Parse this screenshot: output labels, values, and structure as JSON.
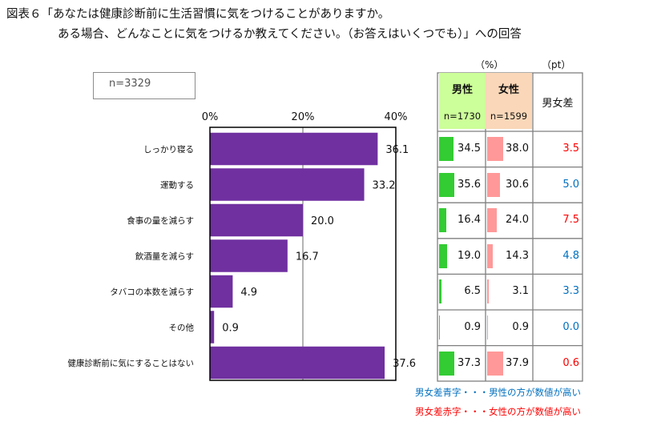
{
  "title": {
    "line1": "図表６「あなたは健康診断前に生活習慣に気をつけることがありますか。",
    "line2": "ある場合、どんなことに気をつけるか教えてください。（お答えはいくつでも）」への回答"
  },
  "sample_size": "n=3329",
  "chart_data": {
    "type": "bar",
    "orientation": "horizontal",
    "title": "図表６「あなたは健康診断前に生活習慣に気をつけることがありますか。ある場合、どんなことに気をつけるか教えてください。（お答えはいくつでも）」への回答",
    "categories": [
      "しっかり寝る",
      "運動する",
      "食事の量を減らす",
      "飲酒量を減らす",
      "タバコの本数を減らす",
      "その他",
      "健康診断前に気にすることはない"
    ],
    "values": [
      36.1,
      33.2,
      20.0,
      16.7,
      4.9,
      0.9,
      37.6
    ],
    "value_labels": [
      "36.1",
      "33.2",
      "20.0",
      "16.7",
      "4.9",
      "0.9",
      "37.6"
    ],
    "xlim": [
      0,
      40
    ],
    "x_ticks": [
      0,
      20,
      40
    ],
    "x_tick_labels": [
      "0%",
      "20%",
      "40%"
    ],
    "bar_color": "#7030a0",
    "grid": true,
    "table": {
      "unit_pct": "（%）",
      "unit_pt": "（pt）",
      "male": {
        "label": "男性",
        "n": "n=1730",
        "color": "#33cc33",
        "values": [
          34.5,
          35.6,
          16.4,
          19.0,
          6.5,
          0.9,
          37.3
        ],
        "labels": [
          "34.5",
          "35.6",
          "16.4",
          "19.0",
          "6.5",
          "0.9",
          "37.3"
        ]
      },
      "female": {
        "label": "女性",
        "n": "n=1599",
        "color": "#ff9999",
        "values": [
          38.0,
          30.6,
          24.0,
          14.3,
          3.1,
          0.9,
          37.9
        ],
        "labels": [
          "38.0",
          "30.6",
          "24.0",
          "14.3",
          "3.1",
          "0.9",
          "37.9"
        ]
      },
      "diff": {
        "label": "男女差",
        "values": [
          3.5,
          5.0,
          7.5,
          4.8,
          3.3,
          0.0,
          0.6
        ],
        "labels": [
          "3.5",
          "5.0",
          "7.5",
          "4.8",
          "3.3",
          "0.0",
          "0.6"
        ],
        "colors": [
          "#ff0000",
          "#0070c0",
          "#ff0000",
          "#0070c0",
          "#0070c0",
          "#0070c0",
          "#ff0000"
        ]
      }
    },
    "notes": [
      {
        "text": "男女差青字・・・男性の方が数値が高い",
        "color": "#0070c0"
      },
      {
        "text": "男女差赤字・・・女性の方が数値が高い",
        "color": "#ff0000"
      }
    ]
  }
}
